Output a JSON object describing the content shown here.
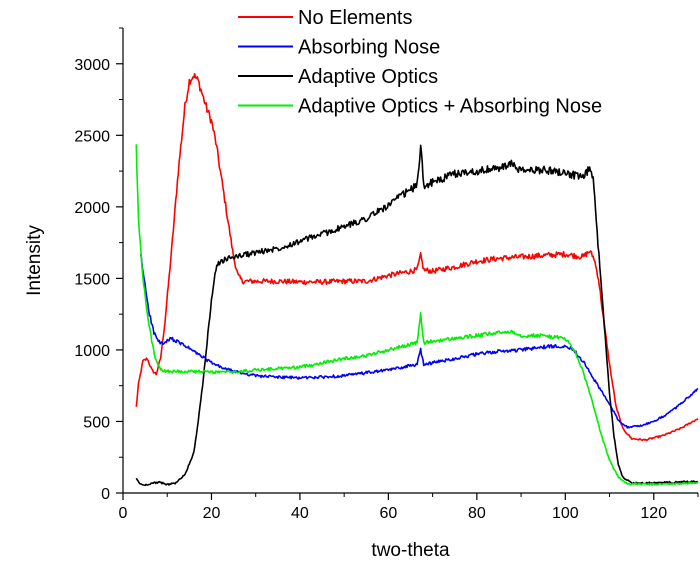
{
  "chart_data": {
    "type": "line",
    "title": "",
    "xlabel": "two-theta",
    "ylabel": "Intensity",
    "xlim": [
      0,
      130
    ],
    "ylim": [
      0,
      3250
    ],
    "xticks": [
      0,
      20,
      40,
      60,
      80,
      100,
      120
    ],
    "yticks": [
      0,
      500,
      1000,
      1500,
      2000,
      2500,
      3000
    ],
    "grid": false,
    "legend": "top-right",
    "series": [
      {
        "name": "No Elements",
        "color": "#ff0000",
        "points": [
          [
            3,
            600
          ],
          [
            3.5,
            760
          ],
          [
            4.5,
            920
          ],
          [
            5.5,
            940
          ],
          [
            6.5,
            860
          ],
          [
            7.5,
            830
          ],
          [
            8.5,
            940
          ],
          [
            9.5,
            1200
          ],
          [
            11,
            1700
          ],
          [
            12.5,
            2250
          ],
          [
            14,
            2700
          ],
          [
            15,
            2880
          ],
          [
            16,
            2920
          ],
          [
            17,
            2880
          ],
          [
            18,
            2780
          ],
          [
            19,
            2680
          ],
          [
            20,
            2600
          ],
          [
            21,
            2450
          ],
          [
            22,
            2250
          ],
          [
            23,
            2050
          ],
          [
            24,
            1850
          ],
          [
            25,
            1650
          ],
          [
            26,
            1520
          ],
          [
            27,
            1480
          ],
          [
            30,
            1480
          ],
          [
            35,
            1480
          ],
          [
            40,
            1475
          ],
          [
            45,
            1475
          ],
          [
            50,
            1480
          ],
          [
            55,
            1480
          ],
          [
            60,
            1520
          ],
          [
            65,
            1550
          ],
          [
            66.5,
            1560
          ],
          [
            67.3,
            1660
          ],
          [
            68,
            1560
          ],
          [
            70,
            1550
          ],
          [
            75,
            1580
          ],
          [
            80,
            1620
          ],
          [
            85,
            1640
          ],
          [
            90,
            1650
          ],
          [
            95,
            1660
          ],
          [
            100,
            1670
          ],
          [
            104,
            1650
          ],
          [
            105.5,
            1690
          ],
          [
            106.5,
            1640
          ],
          [
            107.5,
            1500
          ],
          [
            108.5,
            1250
          ],
          [
            110,
            900
          ],
          [
            111.5,
            600
          ],
          [
            113,
            450
          ],
          [
            115,
            380
          ],
          [
            118,
            370
          ],
          [
            122,
            400
          ],
          [
            126,
            450
          ],
          [
            130,
            520
          ]
        ]
      },
      {
        "name": "Absorbing Nose",
        "color": "#0000ff",
        "points": [
          [
            4,
            1660
          ],
          [
            5,
            1450
          ],
          [
            6,
            1250
          ],
          [
            7,
            1120
          ],
          [
            8,
            1060
          ],
          [
            9,
            1040
          ],
          [
            10,
            1060
          ],
          [
            11,
            1080
          ],
          [
            12,
            1060
          ],
          [
            14,
            1030
          ],
          [
            16,
            990
          ],
          [
            18,
            950
          ],
          [
            20,
            910
          ],
          [
            22,
            880
          ],
          [
            25,
            850
          ],
          [
            30,
            820
          ],
          [
            35,
            810
          ],
          [
            40,
            805
          ],
          [
            45,
            810
          ],
          [
            50,
            820
          ],
          [
            55,
            840
          ],
          [
            60,
            860
          ],
          [
            65,
            890
          ],
          [
            66.5,
            900
          ],
          [
            67.3,
            1000
          ],
          [
            68,
            900
          ],
          [
            70,
            910
          ],
          [
            75,
            940
          ],
          [
            80,
            970
          ],
          [
            85,
            990
          ],
          [
            90,
            1000
          ],
          [
            95,
            1020
          ],
          [
            100,
            1030
          ],
          [
            102,
            1000
          ],
          [
            104,
            920
          ],
          [
            106,
            820
          ],
          [
            108,
            720
          ],
          [
            110,
            620
          ],
          [
            112,
            510
          ],
          [
            114,
            460
          ],
          [
            117,
            470
          ],
          [
            120,
            500
          ],
          [
            123,
            550
          ],
          [
            126,
            620
          ],
          [
            130,
            730
          ]
        ]
      },
      {
        "name": "Adaptive Optics",
        "color": "#000000",
        "points": [
          [
            3,
            100
          ],
          [
            4,
            60
          ],
          [
            5,
            55
          ],
          [
            6,
            65
          ],
          [
            8,
            75
          ],
          [
            10,
            60
          ],
          [
            12,
            70
          ],
          [
            14,
            130
          ],
          [
            16,
            280
          ],
          [
            17,
            500
          ],
          [
            18,
            750
          ],
          [
            19,
            1050
          ],
          [
            20,
            1350
          ],
          [
            21,
            1570
          ],
          [
            22,
            1620
          ],
          [
            25,
            1650
          ],
          [
            30,
            1680
          ],
          [
            35,
            1710
          ],
          [
            40,
            1760
          ],
          [
            45,
            1810
          ],
          [
            50,
            1860
          ],
          [
            55,
            1920
          ],
          [
            60,
            2010
          ],
          [
            63,
            2080
          ],
          [
            65,
            2120
          ],
          [
            66.5,
            2150
          ],
          [
            67.3,
            2430
          ],
          [
            68,
            2150
          ],
          [
            70,
            2170
          ],
          [
            75,
            2230
          ],
          [
            80,
            2250
          ],
          [
            85,
            2270
          ],
          [
            88,
            2300
          ],
          [
            90,
            2250
          ],
          [
            95,
            2260
          ],
          [
            100,
            2240
          ],
          [
            104,
            2200
          ],
          [
            105.5,
            2270
          ],
          [
            106.3,
            2200
          ],
          [
            107,
            1900
          ],
          [
            108,
            1500
          ],
          [
            109,
            1100
          ],
          [
            110,
            700
          ],
          [
            111,
            400
          ],
          [
            112,
            200
          ],
          [
            113,
            110
          ],
          [
            115,
            70
          ],
          [
            120,
            70
          ],
          [
            125,
            75
          ],
          [
            130,
            80
          ]
        ]
      },
      {
        "name": "Adaptive Optics + Absorbing Nose",
        "color": "#00ee00",
        "points": [
          [
            3,
            2420
          ],
          [
            3.5,
            1900
          ],
          [
            4.5,
            1500
          ],
          [
            5.5,
            1250
          ],
          [
            6.5,
            1060
          ],
          [
            7.5,
            920
          ],
          [
            8.5,
            860
          ],
          [
            10,
            850
          ],
          [
            15,
            850
          ],
          [
            20,
            845
          ],
          [
            25,
            845
          ],
          [
            30,
            860
          ],
          [
            35,
            870
          ],
          [
            40,
            880
          ],
          [
            45,
            910
          ],
          [
            50,
            940
          ],
          [
            55,
            960
          ],
          [
            60,
            1000
          ],
          [
            65,
            1040
          ],
          [
            66.5,
            1050
          ],
          [
            67.3,
            1250
          ],
          [
            68,
            1050
          ],
          [
            70,
            1060
          ],
          [
            75,
            1080
          ],
          [
            80,
            1100
          ],
          [
            85,
            1120
          ],
          [
            88,
            1130
          ],
          [
            90,
            1100
          ],
          [
            95,
            1100
          ],
          [
            100,
            1080
          ],
          [
            102,
            1000
          ],
          [
            104,
            850
          ],
          [
            106,
            650
          ],
          [
            108,
            420
          ],
          [
            110,
            230
          ],
          [
            112,
            110
          ],
          [
            114,
            65
          ],
          [
            120,
            60
          ],
          [
            125,
            65
          ],
          [
            130,
            70
          ]
        ]
      }
    ]
  }
}
